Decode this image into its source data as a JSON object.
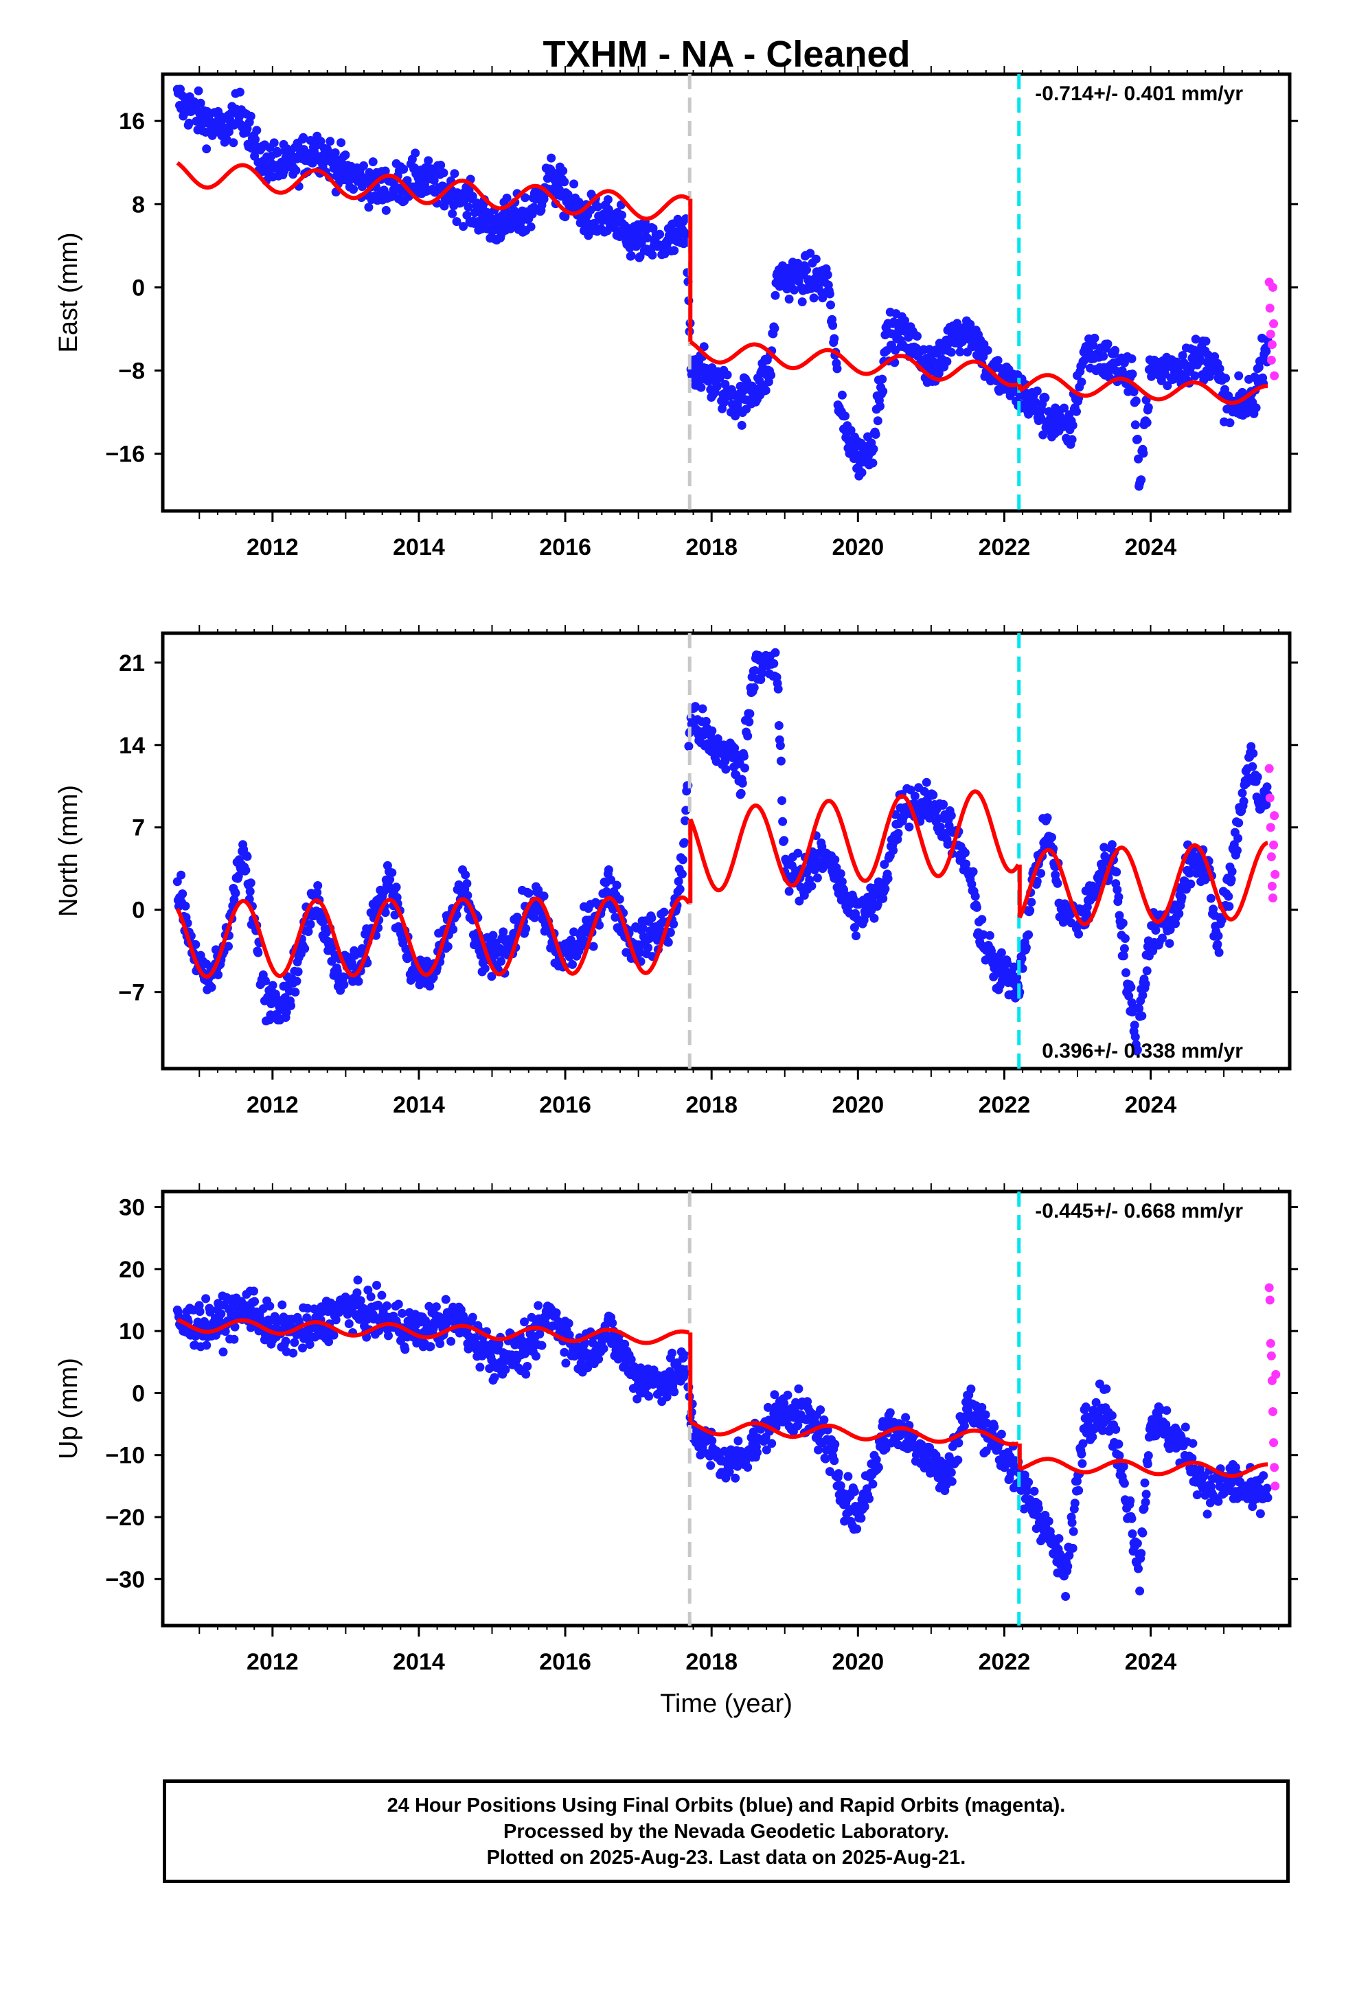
{
  "page": {
    "title": "TXHM  - NA - Cleaned",
    "footer": [
      "24 Hour Positions Using Final Orbits (blue) and Rapid Orbits (magenta).",
      "Processed by the Nevada Geodetic Laboratory.",
      "Plotted on 2025-Aug-23. Last data on 2025-Aug-21."
    ]
  },
  "colors": {
    "final_orbits": "#1a1aff",
    "rapid_orbits": "#ff33ff",
    "model": "#ff0000",
    "equipment_change": "#c8c8c8",
    "earthquake": "#00e5ee"
  },
  "chart_data": [
    {
      "type": "scatter",
      "ylabel": "East (mm)",
      "xlabel": "",
      "xlim": [
        2010.5,
        2025.9
      ],
      "ylim": [
        -21.5,
        20.5
      ],
      "xticks": [
        2012,
        2014,
        2016,
        2018,
        2020,
        2022,
        2024
      ],
      "yticks": [
        -16,
        -8,
        0,
        8,
        16
      ],
      "rate_label": "-0.714+/- 0.401 mm/yr",
      "rate_position": "top-right",
      "vertical_lines": [
        {
          "x": 2017.7,
          "kind": "equipment_change"
        },
        {
          "x": 2022.2,
          "kind": "earthquake"
        }
      ],
      "final_trend": [
        [
          2010.7,
          18.0
        ],
        [
          2011.0,
          16.5
        ],
        [
          2011.3,
          15.0
        ],
        [
          2011.6,
          17.0
        ],
        [
          2011.8,
          12.5
        ],
        [
          2012.2,
          11.5
        ],
        [
          2012.6,
          13.5
        ],
        [
          2013.0,
          11.0
        ],
        [
          2013.5,
          9.5
        ],
        [
          2014.0,
          10.5
        ],
        [
          2014.5,
          9.0
        ],
        [
          2015.0,
          6.0
        ],
        [
          2015.5,
          7.0
        ],
        [
          2015.8,
          10.5
        ],
        [
          2016.2,
          7.0
        ],
        [
          2016.6,
          6.5
        ],
        [
          2016.9,
          4.5
        ],
        [
          2017.3,
          4.0
        ],
        [
          2017.65,
          5.0
        ],
        [
          2017.72,
          -7.0
        ],
        [
          2018.0,
          -9.0
        ],
        [
          2018.4,
          -11.0
        ],
        [
          2018.8,
          -8.0
        ],
        [
          2018.9,
          1.0
        ],
        [
          2019.3,
          1.0
        ],
        [
          2019.6,
          0.5
        ],
        [
          2019.75,
          -12.0
        ],
        [
          2020.0,
          -16.5
        ],
        [
          2020.2,
          -15.0
        ],
        [
          2020.4,
          -4.5
        ],
        [
          2020.7,
          -5.0
        ],
        [
          2020.9,
          -7.0
        ],
        [
          2021.1,
          -8.0
        ],
        [
          2021.3,
          -4.0
        ],
        [
          2021.6,
          -4.5
        ],
        [
          2021.8,
          -8.0
        ],
        [
          2022.2,
          -10.0
        ],
        [
          2022.5,
          -12.0
        ],
        [
          2022.9,
          -14.0
        ],
        [
          2023.1,
          -6.0
        ],
        [
          2023.5,
          -7.5
        ],
        [
          2023.75,
          -9.0
        ],
        [
          2023.85,
          -18.0
        ],
        [
          2024.0,
          -8.0
        ],
        [
          2024.4,
          -7.5
        ],
        [
          2024.8,
          -6.5
        ],
        [
          2025.1,
          -12.0
        ],
        [
          2025.4,
          -10.5
        ],
        [
          2025.6,
          -5.0
        ]
      ],
      "model_fit": {
        "segments": [
          {
            "t0": 2010.7,
            "t1": 2017.69,
            "offset": 11.0,
            "slope": -0.5,
            "annual_amp": 1.2
          },
          {
            "t0": 2017.71,
            "t1": 2022.19,
            "offset": -6.0,
            "slope": -0.55,
            "annual_amp": 1.0
          },
          {
            "t0": 2022.21,
            "t1": 2025.6,
            "offset": -9.2,
            "slope": -0.35,
            "annual_amp": 0.9
          }
        ]
      },
      "rapid_points": [
        [
          2025.62,
          0.5
        ],
        [
          2025.63,
          -2.0
        ],
        [
          2025.64,
          -4.5
        ],
        [
          2025.65,
          -7.0
        ],
        [
          2025.66,
          -5.5
        ],
        [
          2025.67,
          0.0
        ],
        [
          2025.68,
          -3.5
        ],
        [
          2025.69,
          -8.5
        ]
      ]
    },
    {
      "type": "scatter",
      "ylabel": "North (mm)",
      "xlabel": "",
      "xlim": [
        2010.5,
        2025.9
      ],
      "ylim": [
        -13.5,
        23.5
      ],
      "xticks": [
        2012,
        2014,
        2016,
        2018,
        2020,
        2022,
        2024
      ],
      "yticks": [
        -7,
        0,
        7,
        14,
        21
      ],
      "rate_label": "0.396+/- 0.338 mm/yr",
      "rate_position": "bottom-right",
      "vertical_lines": [
        {
          "x": 2017.7,
          "kind": "equipment_change"
        },
        {
          "x": 2022.2,
          "kind": "earthquake"
        }
      ],
      "final_trend": [
        [
          2010.7,
          2.0
        ],
        [
          2010.9,
          -3.0
        ],
        [
          2011.1,
          -6.5
        ],
        [
          2011.3,
          -4.0
        ],
        [
          2011.6,
          5.0
        ],
        [
          2011.9,
          -7.5
        ],
        [
          2012.2,
          -7.5
        ],
        [
          2012.6,
          1.5
        ],
        [
          2012.9,
          -5.5
        ],
        [
          2013.2,
          -4.5
        ],
        [
          2013.6,
          3.0
        ],
        [
          2013.9,
          -5.5
        ],
        [
          2014.2,
          -5.5
        ],
        [
          2014.6,
          2.0
        ],
        [
          2014.9,
          -4.5
        ],
        [
          2015.2,
          -3.0
        ],
        [
          2015.6,
          1.0
        ],
        [
          2015.9,
          -4.0
        ],
        [
          2016.2,
          -3.0
        ],
        [
          2016.6,
          2.0
        ],
        [
          2016.9,
          -3.0
        ],
        [
          2017.2,
          -2.0
        ],
        [
          2017.45,
          -1.5
        ],
        [
          2017.6,
          3.5
        ],
        [
          2017.72,
          16.5
        ],
        [
          2018.0,
          14.0
        ],
        [
          2018.3,
          13.0
        ],
        [
          2018.4,
          11.0
        ],
        [
          2018.6,
          21.5
        ],
        [
          2018.9,
          20.0
        ],
        [
          2019.0,
          3.0
        ],
        [
          2019.3,
          3.0
        ],
        [
          2019.6,
          5.0
        ],
        [
          2019.8,
          1.0
        ],
        [
          2020.0,
          -0.5
        ],
        [
          2020.3,
          1.0
        ],
        [
          2020.6,
          9.0
        ],
        [
          2021.0,
          9.0
        ],
        [
          2021.2,
          7.5
        ],
        [
          2021.5,
          3.5
        ],
        [
          2021.7,
          -2.5
        ],
        [
          2021.9,
          -5.5
        ],
        [
          2022.2,
          -6.0
        ],
        [
          2022.4,
          2.5
        ],
        [
          2022.6,
          7.0
        ],
        [
          2022.8,
          -0.5
        ],
        [
          2023.1,
          -0.5
        ],
        [
          2023.3,
          3.0
        ],
        [
          2023.5,
          4.5
        ],
        [
          2023.7,
          -7.0
        ],
        [
          2023.8,
          -11.0
        ],
        [
          2024.0,
          -2.0
        ],
        [
          2024.3,
          -1.0
        ],
        [
          2024.5,
          3.5
        ],
        [
          2024.8,
          4.0
        ],
        [
          2024.9,
          -3.0
        ],
        [
          2025.1,
          3.0
        ],
        [
          2025.35,
          13.5
        ],
        [
          2025.5,
          9.0
        ],
        [
          2025.6,
          9.5
        ]
      ],
      "model_fit": {
        "segments": [
          {
            "t0": 2010.7,
            "t1": 2017.69,
            "offset": -2.5,
            "slope": 0.05,
            "annual_amp": 3.2
          },
          {
            "t0": 2017.71,
            "t1": 2022.19,
            "offset": 5.0,
            "slope": 0.4,
            "annual_amp": 3.5
          },
          {
            "t0": 2022.21,
            "t1": 2025.6,
            "offset": 1.8,
            "slope": 0.2,
            "annual_amp": 3.2
          }
        ]
      },
      "rapid_points": [
        [
          2025.62,
          12.0
        ],
        [
          2025.63,
          9.5
        ],
        [
          2025.64,
          7.0
        ],
        [
          2025.65,
          4.5
        ],
        [
          2025.66,
          2.0
        ],
        [
          2025.67,
          1.0
        ],
        [
          2025.68,
          5.5
        ],
        [
          2025.69,
          8.0
        ],
        [
          2025.7,
          3.0
        ]
      ]
    },
    {
      "type": "scatter",
      "ylabel": "Up (mm)",
      "xlabel": "Time (year)",
      "xlim": [
        2010.5,
        2025.9
      ],
      "ylim": [
        -37.5,
        32.5
      ],
      "xticks": [
        2012,
        2014,
        2016,
        2018,
        2020,
        2022,
        2024
      ],
      "yticks": [
        -30,
        -20,
        -10,
        0,
        10,
        20,
        30
      ],
      "rate_label": "-0.445+/- 0.668 mm/yr",
      "rate_position": "top-right",
      "vertical_lines": [
        {
          "x": 2017.7,
          "kind": "equipment_change"
        },
        {
          "x": 2022.2,
          "kind": "earthquake"
        }
      ],
      "final_trend": [
        [
          2010.7,
          11.0
        ],
        [
          2011.2,
          11.0
        ],
        [
          2011.7,
          14.0
        ],
        [
          2012.0,
          10.0
        ],
        [
          2012.5,
          10.0
        ],
        [
          2013.0,
          14.0
        ],
        [
          2013.5,
          12.0
        ],
        [
          2014.0,
          10.0
        ],
        [
          2014.5,
          12.0
        ],
        [
          2015.0,
          6.0
        ],
        [
          2015.5,
          7.0
        ],
        [
          2015.8,
          13.0
        ],
        [
          2016.2,
          6.0
        ],
        [
          2016.6,
          10.0
        ],
        [
          2017.0,
          2.0
        ],
        [
          2017.4,
          2.0
        ],
        [
          2017.65,
          4.0
        ],
        [
          2017.75,
          -6.0
        ],
        [
          2018.2,
          -12.0
        ],
        [
          2018.6,
          -8.0
        ],
        [
          2019.0,
          -2.0
        ],
        [
          2019.5,
          -6.0
        ],
        [
          2019.8,
          -16.0
        ],
        [
          2020.0,
          -20.0
        ],
        [
          2020.4,
          -5.0
        ],
        [
          2020.8,
          -8.0
        ],
        [
          2021.2,
          -14.0
        ],
        [
          2021.5,
          -2.0
        ],
        [
          2021.8,
          -6.0
        ],
        [
          2022.2,
          -14.0
        ],
        [
          2022.5,
          -20.0
        ],
        [
          2022.85,
          -30.0
        ],
        [
          2023.1,
          -4.0
        ],
        [
          2023.4,
          -2.0
        ],
        [
          2023.7,
          -18.0
        ],
        [
          2023.85,
          -28.0
        ],
        [
          2024.0,
          -4.0
        ],
        [
          2024.4,
          -8.0
        ],
        [
          2024.8,
          -16.0
        ],
        [
          2025.1,
          -14.0
        ],
        [
          2025.4,
          -17.0
        ],
        [
          2025.6,
          -16.0
        ]
      ],
      "model_fit": {
        "segments": [
          {
            "t0": 2010.7,
            "t1": 2017.69,
            "offset": 11.0,
            "slope": -0.3,
            "annual_amp": 1.0
          },
          {
            "t0": 2017.71,
            "t1": 2022.19,
            "offset": -5.5,
            "slope": -0.4,
            "annual_amp": 1.0
          },
          {
            "t0": 2022.21,
            "t1": 2025.6,
            "offset": -11.5,
            "slope": -0.3,
            "annual_amp": 1.0
          }
        ]
      },
      "rapid_points": [
        [
          2025.62,
          17.0
        ],
        [
          2025.63,
          15.0
        ],
        [
          2025.64,
          8.0
        ],
        [
          2025.65,
          6.0
        ],
        [
          2025.66,
          2.0
        ],
        [
          2025.67,
          -3.0
        ],
        [
          2025.68,
          -8.0
        ],
        [
          2025.69,
          -12.0
        ],
        [
          2025.7,
          -15.0
        ],
        [
          2025.71,
          3.0
        ]
      ]
    }
  ]
}
